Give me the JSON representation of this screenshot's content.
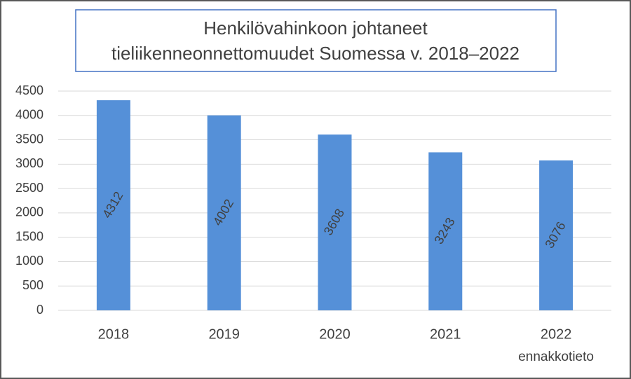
{
  "chart_data": {
    "type": "bar",
    "title": [
      "Henkilövahinkoon johtaneet",
      "tieliikenneonnettomuudet Suomessa v. 2018–2022"
    ],
    "categories": [
      "2018",
      "2019",
      "2020",
      "2021",
      "2022"
    ],
    "category_notes": [
      null,
      null,
      null,
      null,
      "ennakkotieto"
    ],
    "values": [
      4312,
      4002,
      3608,
      3243,
      3076
    ],
    "color": "#5590d8",
    "ylim": [
      0,
      4500
    ],
    "yticks": [
      0,
      500,
      1000,
      1500,
      2000,
      2500,
      3000,
      3500,
      4000,
      4500
    ],
    "grid": true
  }
}
